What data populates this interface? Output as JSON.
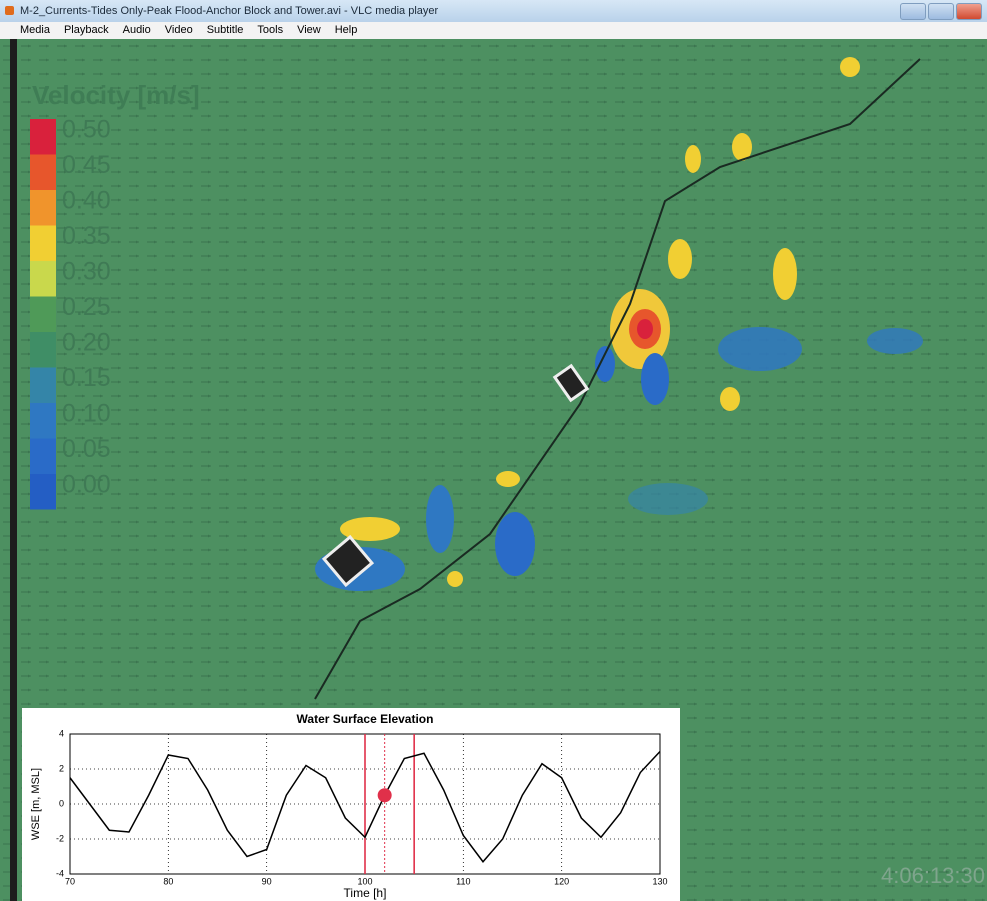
{
  "window": {
    "title": "M-2_Currents-Tides Only-Peak Flood-Anchor Block and Tower.avi - VLC media player"
  },
  "menu": [
    "Media",
    "Playback",
    "Audio",
    "Video",
    "Subtitle",
    "Tools",
    "View",
    "Help"
  ],
  "colorbar": {
    "title": "Velocity [m/s]",
    "labels": [
      "0.50",
      "0.45",
      "0.40",
      "0.35",
      "0.30",
      "0.25",
      "0.20",
      "0.15",
      "0.10",
      "0.05",
      "0.00"
    ],
    "colors": [
      "#d9213c",
      "#e7562c",
      "#f0942c",
      "#f1cf33",
      "#c9d84c",
      "#4f9a58",
      "#3f8e66",
      "#3485a8",
      "#2f78c2",
      "#2a6bc8",
      "#245ec4"
    ]
  },
  "timestamp": "4:06:13:30",
  "chart_data": {
    "type": "line",
    "title": "Water Surface Elevation",
    "x_label": "Time [h]",
    "y_label": "WSE [m, MSL]",
    "x": [
      70,
      72,
      74,
      76,
      78,
      80,
      82,
      84,
      86,
      88,
      90,
      92,
      94,
      96,
      98,
      100,
      102,
      104,
      106,
      108,
      110,
      112,
      114,
      116,
      118,
      120,
      122,
      124,
      126,
      128,
      130
    ],
    "values": [
      1.5,
      0,
      -1.5,
      -1.6,
      0.5,
      2.8,
      2.6,
      0.8,
      -1.5,
      -3.0,
      -2.6,
      0.5,
      2.2,
      1.5,
      -0.8,
      -1.9,
      0.5,
      2.6,
      2.9,
      0.8,
      -1.8,
      -3.3,
      -2.0,
      0.5,
      2.3,
      1.5,
      -0.8,
      -1.9,
      -0.5,
      1.8,
      3.0
    ],
    "color": "#000000",
    "xlim": [
      70,
      130
    ],
    "xticks": [
      70,
      80,
      90,
      100,
      110,
      120,
      130
    ],
    "ylim": [
      -4,
      4
    ],
    "yticks": [
      -4,
      -2,
      0,
      2,
      4
    ],
    "grid": true,
    "window_x": [
      100,
      105
    ],
    "current_x": 102,
    "current_y": 0.5,
    "highlight_color": "#e0304a"
  }
}
